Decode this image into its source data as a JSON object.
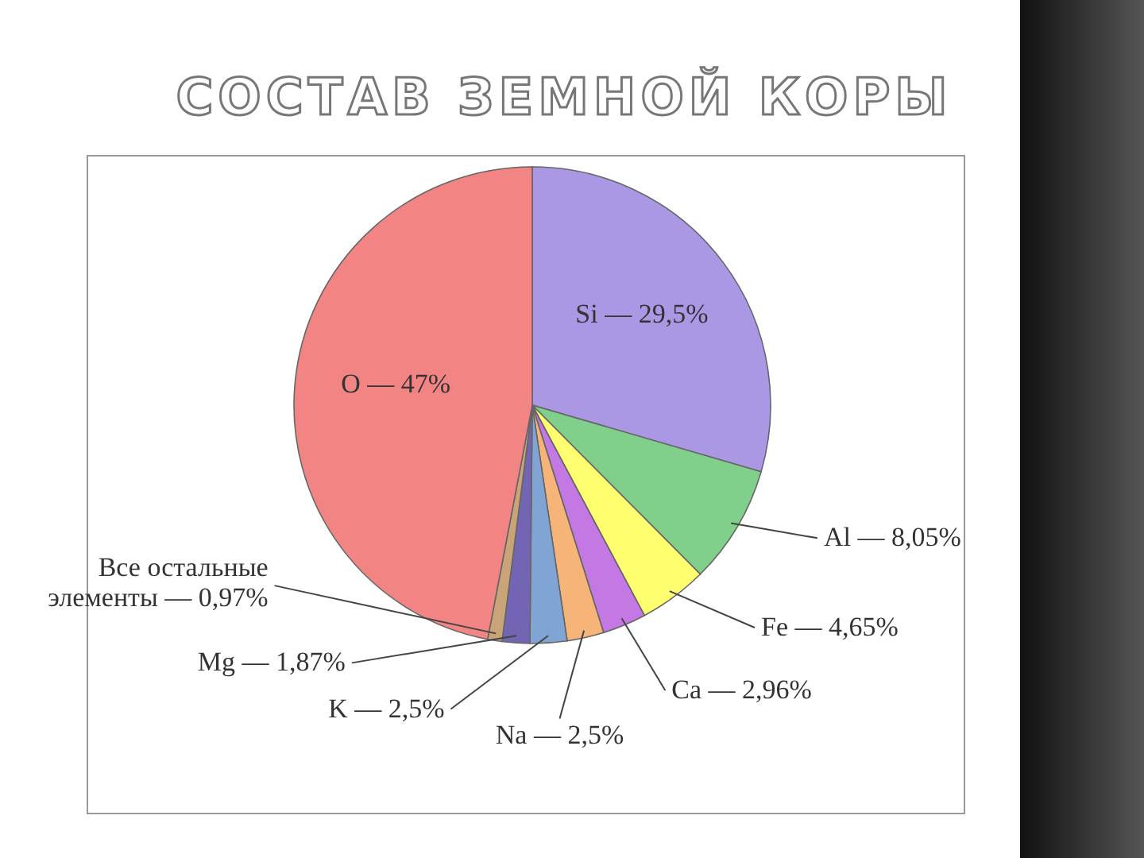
{
  "chart_data": {
    "type": "pie",
    "title": "СОСТАВ ЗЕМНОЙ КОРЫ",
    "categories": [
      "Si",
      "Al",
      "Fe",
      "Ca",
      "Na",
      "K",
      "Mg",
      "Все остальные элементы",
      "O"
    ],
    "values": [
      29.5,
      8.05,
      4.65,
      2.96,
      2.5,
      2.5,
      1.87,
      0.97,
      47
    ],
    "value_labels": [
      "— 29,5%",
      "— 8,05%",
      "— 4,65%",
      "— 2,96%",
      "— 2,5%",
      "— 2,5%",
      "— 1,87%",
      "— 0,97%",
      "— 47%"
    ],
    "colors": [
      "#ab98e4",
      "#80d08c",
      "#ffff70",
      "#c478e4",
      "#f6b478",
      "#80a4d4",
      "#7464b4",
      "#c8a478",
      "#f28484"
    ]
  }
}
